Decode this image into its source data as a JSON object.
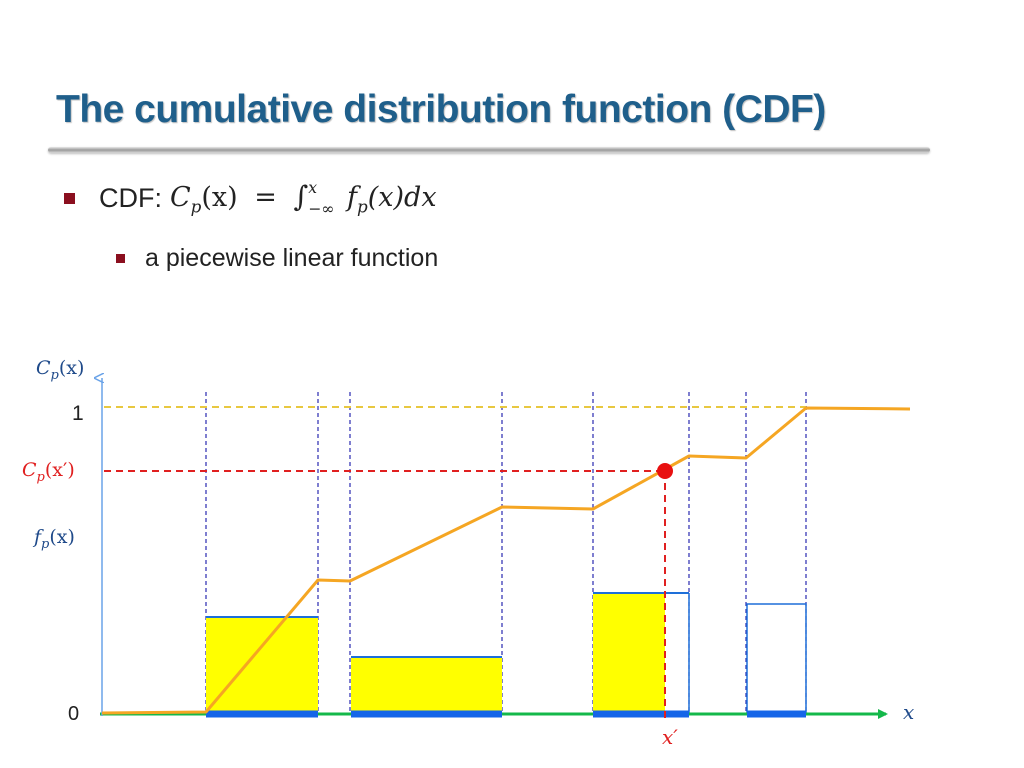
{
  "title": "The cumulative distribution function (CDF)",
  "bullets": {
    "cdf_label": "CDF:",
    "cdf_formula": {
      "lhs": "C",
      "lhs_sub": "p",
      "lhs_arg": "(x)",
      "eq": "=",
      "integral": "∫",
      "upper": "x",
      "lower": "−∞",
      "integrand": "f",
      "integrand_sub": "p",
      "integrand_arg": "(x)dx"
    },
    "sub_item": "a piecewise linear function"
  },
  "diagram": {
    "y_axis_label": {
      "base": "C",
      "sub": "p",
      "arg": "(x)"
    },
    "one_label": "1",
    "cpx_prime_label": {
      "base": "C",
      "sub": "p",
      "arg": "(x′)"
    },
    "fpx_label": {
      "base": "f",
      "sub": "p",
      "arg": "(x)"
    },
    "zero_label": "0",
    "x_axis_label": "x",
    "x_prime_label": "x′",
    "colors": {
      "cdf_curve": "#f5a623",
      "pdf_fill": "#ffff00",
      "pdf_edge": "#1e6fd9",
      "support": "#1565e8",
      "x_axis": "#14b84a",
      "y_axis": "#6aa3e8",
      "guide_one": "#e8c840",
      "guide_cpx": "#e02020",
      "interval_lines": "#2a2ab0",
      "marker": "#e81010"
    }
  }
}
